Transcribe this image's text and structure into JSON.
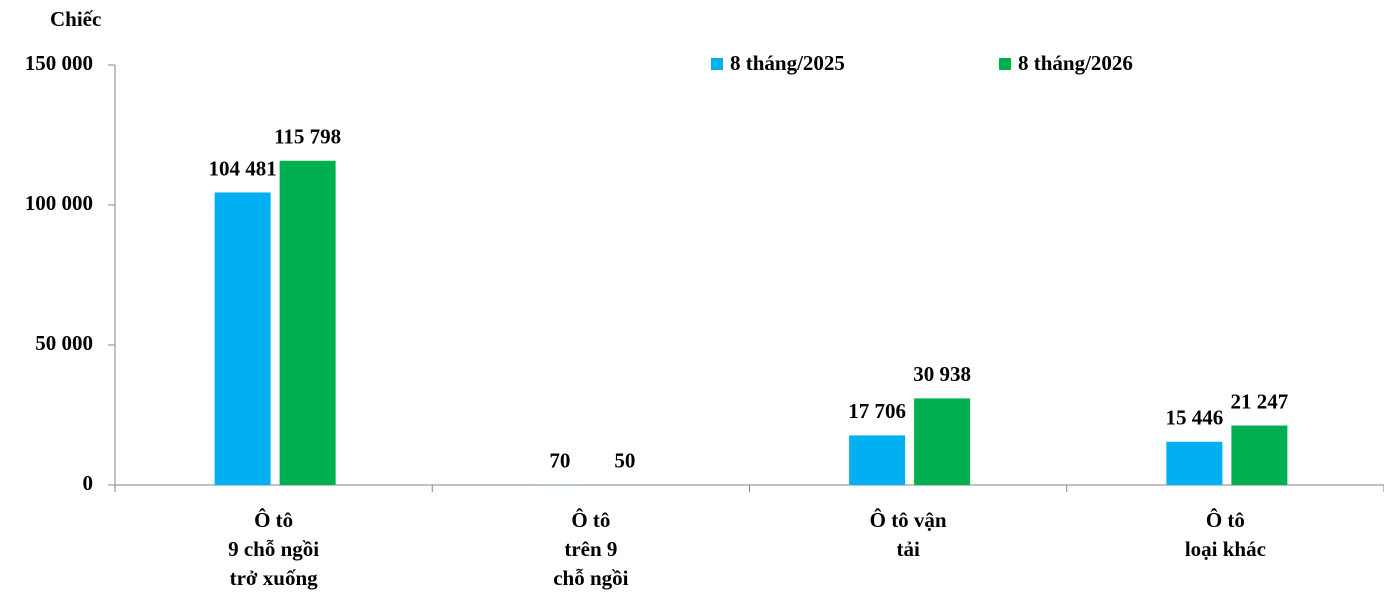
{
  "chart_data": {
    "type": "bar",
    "y_label": "Chiếc",
    "categories": [
      [
        "Ô tô",
        "9 chỗ ngồi",
        "trở xuống"
      ],
      [
        "Ô tô",
        "trên 9",
        "chỗ ngồi"
      ],
      [
        "Ô tô vận",
        "tải"
      ],
      [
        "Ô tô",
        "loại khác"
      ]
    ],
    "series": [
      {
        "name": "8 tháng/2025",
        "color": "#00b0f0",
        "values": [
          104481,
          70,
          17706,
          15446
        ],
        "value_labels": [
          "104 481",
          "70",
          "17 706",
          "15 446"
        ]
      },
      {
        "name": "8 tháng/2026",
        "color": "#00b050",
        "values": [
          115798,
          50,
          30938,
          21247
        ],
        "value_labels": [
          "115 798",
          "50",
          "30 938",
          "21 247"
        ]
      }
    ],
    "ylim": [
      0,
      150000
    ],
    "yticks": [
      0,
      {
        "value": 50000,
        "label": "50 000"
      },
      {
        "value": 100000,
        "label": "100 000"
      },
      {
        "value": 150000,
        "label": "150 000"
      }
    ],
    "legend": "top-right"
  }
}
